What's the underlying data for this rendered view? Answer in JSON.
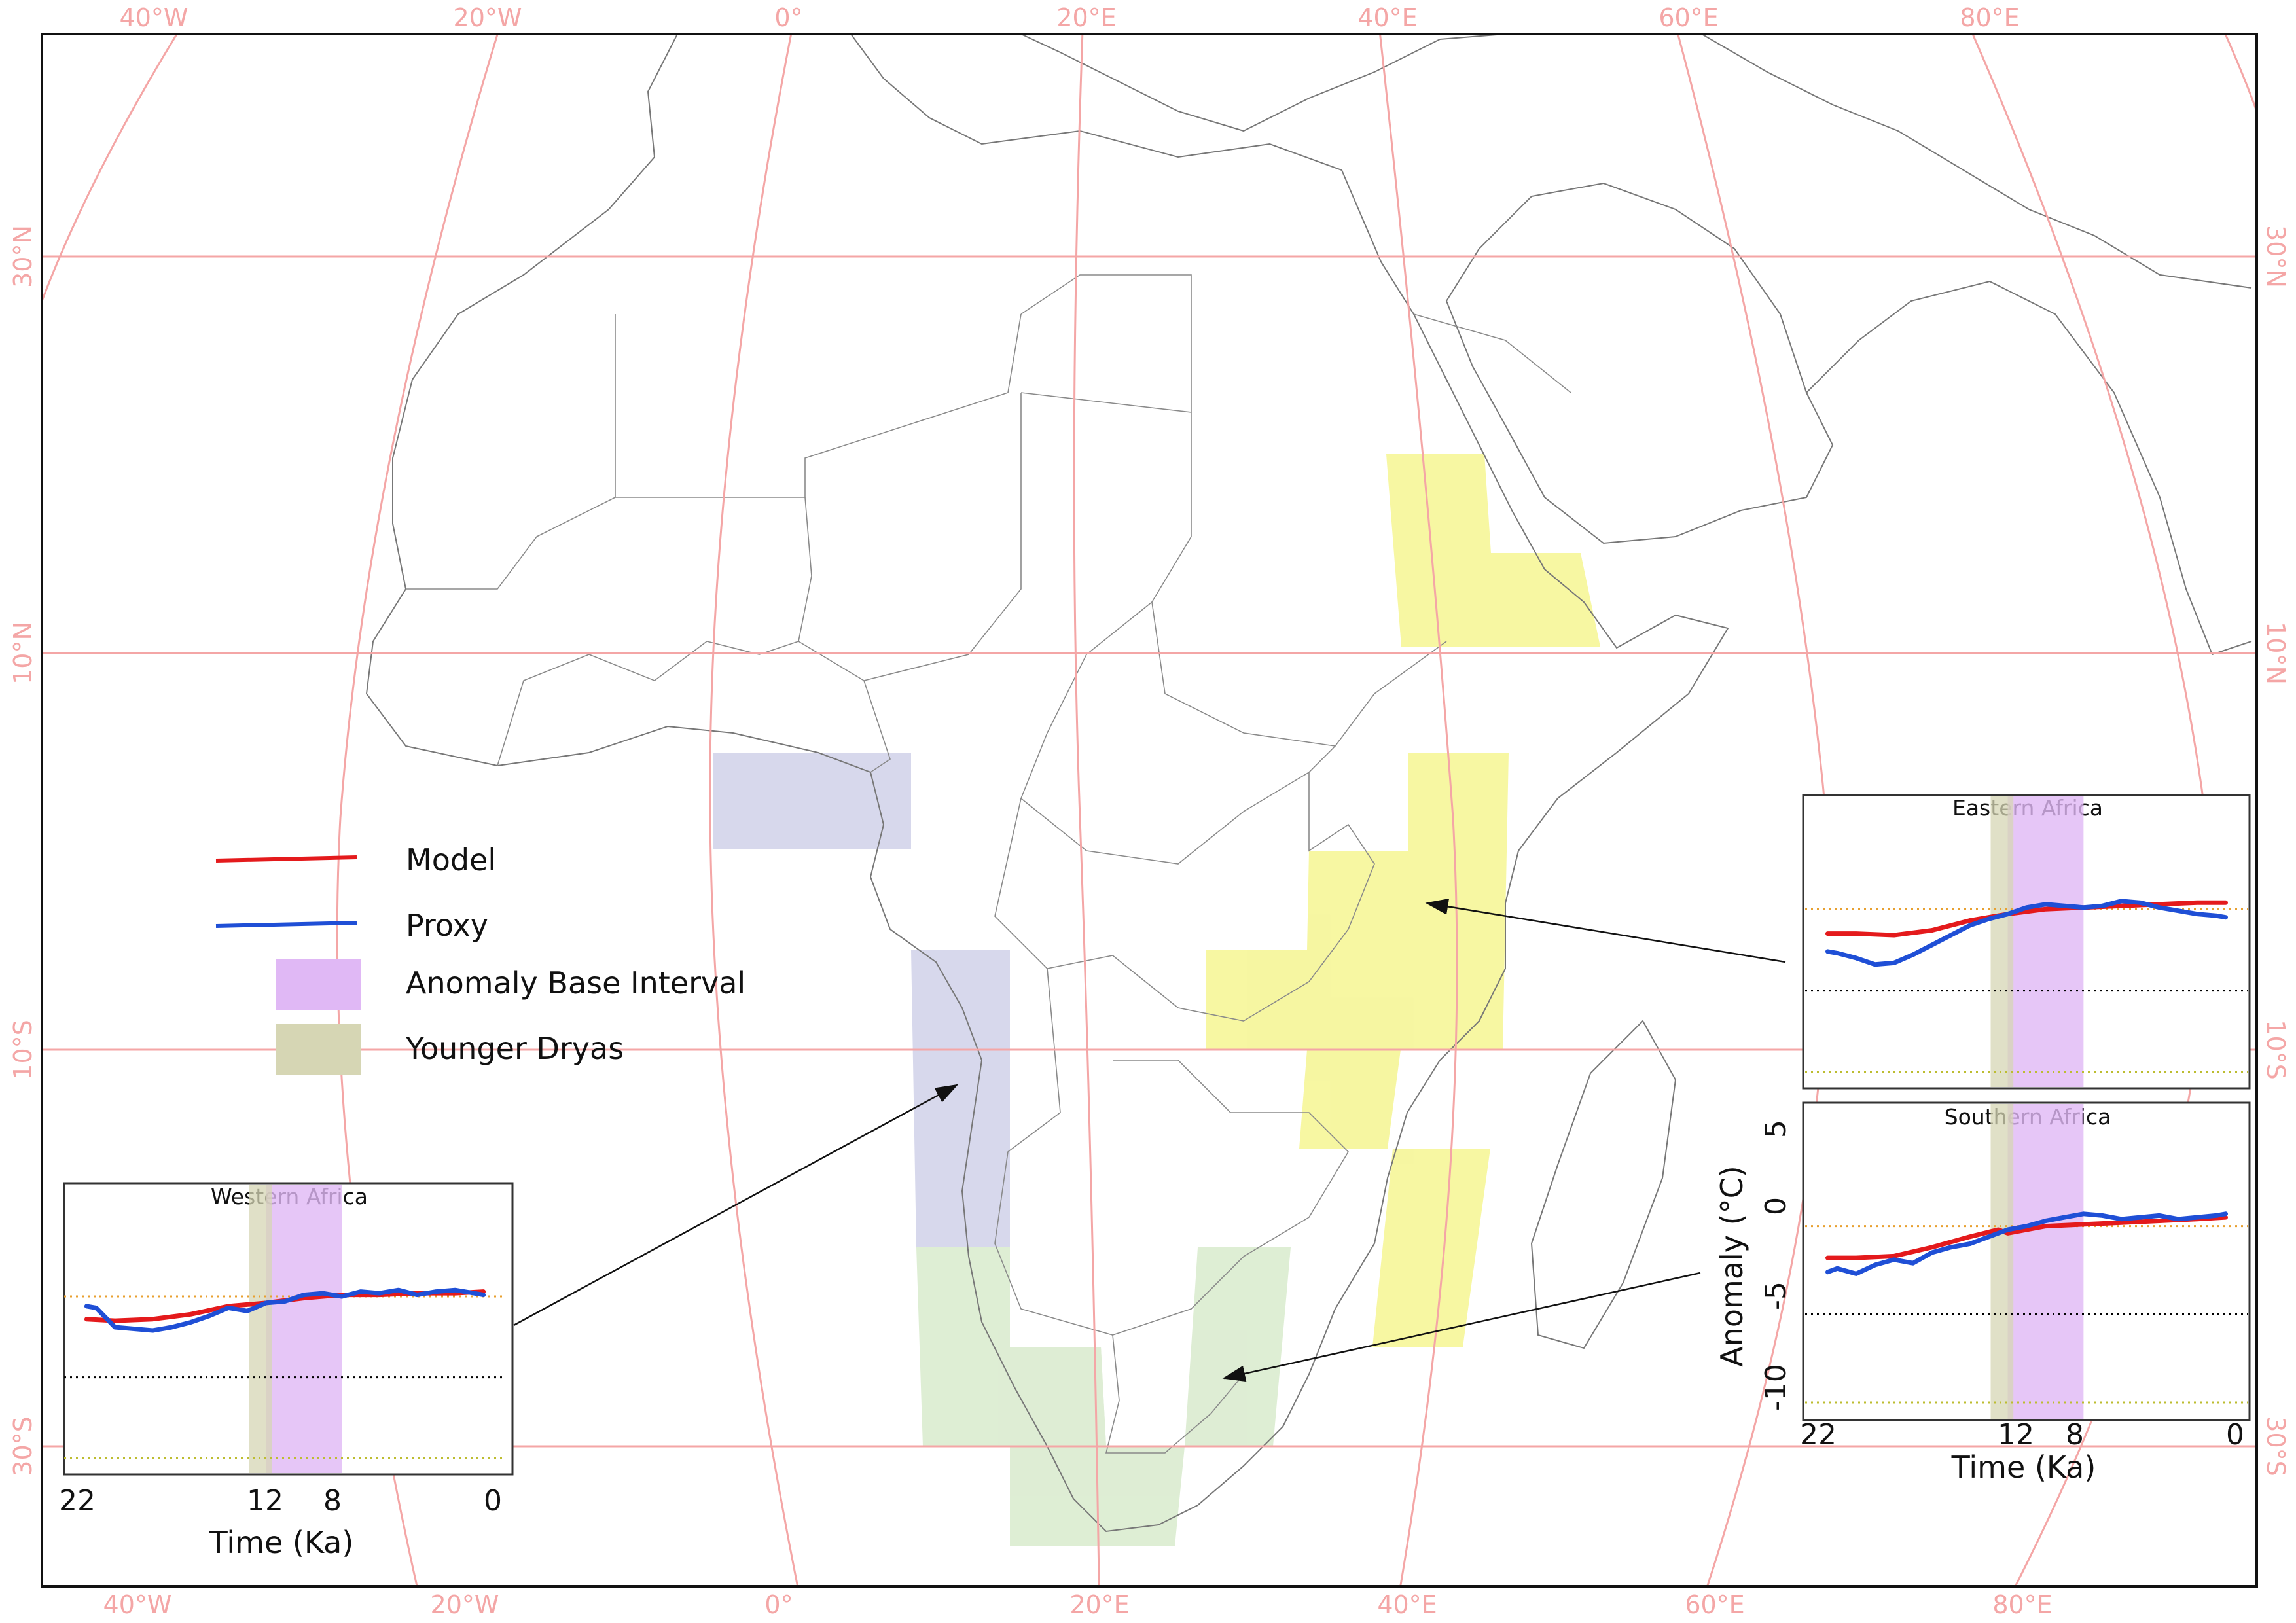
{
  "map": {
    "graticule_color": "#f4a6a6",
    "longitude_labels": [
      "40°W",
      "20°W",
      "0°",
      "20°E",
      "40°E",
      "60°E",
      "80°E"
    ],
    "latitude_labels": [
      "30°N",
      "10°N",
      "10°S",
      "30°S"
    ],
    "regions": [
      {
        "name": "western-africa",
        "color": "#c9cbe6"
      },
      {
        "name": "eastern-africa",
        "color": "#f3f37a"
      },
      {
        "name": "southern-africa",
        "color": "#d3e8c6"
      }
    ]
  },
  "legend": {
    "model": {
      "label": "Model",
      "color": "#e41a1c"
    },
    "proxy": {
      "label": "Proxy",
      "color": "#1f4fd6"
    },
    "base_interval": {
      "label": "Anomaly Base Interval",
      "color": "#e0b8f5"
    },
    "younger_dryas": {
      "label": "Younger Dryas",
      "color": "#d6d6b4"
    }
  },
  "insets": [
    {
      "title": "Western Africa",
      "x_label": "Time (Ka)",
      "x_ticks": [
        "22",
        "12",
        "8",
        "0"
      ]
    },
    {
      "title": "Eastern Africa"
    },
    {
      "title": "Southern Africa",
      "x_label": "Time (Ka)",
      "x_ticks": [
        "22",
        "12",
        "8",
        "0"
      ],
      "y_label": "Anomaly (°C)",
      "y_ticks": [
        "5",
        "0",
        "-5",
        "-10"
      ]
    }
  ],
  "chart_data": [
    {
      "type": "line",
      "title": "Western Africa",
      "xlabel": "Time (Ka)",
      "ylabel": "",
      "xlim": [
        22,
        0
      ],
      "ylim": [
        -11,
        7
      ],
      "base_interval_ka": [
        12,
        8
      ],
      "younger_dryas_ka": [
        12.9,
        11.7
      ],
      "reference_lines": [
        {
          "y": 0,
          "color": "#e8a030"
        },
        {
          "y": -5,
          "color": "#000000"
        },
        {
          "y": -10,
          "color": "#bdbd30"
        }
      ],
      "series": [
        {
          "name": "Model",
          "color": "#e41a1c",
          "x": [
            21.5,
            20,
            18,
            16,
            14,
            12,
            10,
            8,
            6,
            4,
            2,
            0.5
          ],
          "y": [
            -1.4,
            -1.5,
            -1.4,
            -1.1,
            -0.6,
            -0.4,
            -0.1,
            0.1,
            0.1,
            0.2,
            0.2,
            0.3
          ]
        },
        {
          "name": "Proxy",
          "color": "#1f4fd6",
          "x": [
            21.5,
            21,
            20,
            19,
            18,
            17,
            16,
            15,
            14,
            13,
            12,
            11,
            10,
            9,
            8,
            7,
            6,
            5,
            4,
            3,
            2,
            1,
            0.5
          ],
          "y": [
            -0.6,
            -0.7,
            -1.9,
            -2.0,
            -2.1,
            -1.9,
            -1.6,
            -1.2,
            -0.7,
            -0.9,
            -0.4,
            -0.3,
            0.1,
            0.2,
            0.0,
            0.3,
            0.2,
            0.4,
            0.1,
            0.3,
            0.4,
            0.2,
            0.1
          ]
        }
      ]
    },
    {
      "type": "line",
      "title": "Eastern Africa",
      "xlabel": "",
      "ylabel": "",
      "xlim": [
        22,
        0
      ],
      "ylim": [
        -11,
        7
      ],
      "base_interval_ka": [
        12,
        8
      ],
      "younger_dryas_ka": [
        12.9,
        11.7
      ],
      "reference_lines": [
        {
          "y": 0,
          "color": "#e8a030"
        },
        {
          "y": -5,
          "color": "#000000"
        },
        {
          "y": -10,
          "color": "#bdbd30"
        }
      ],
      "series": [
        {
          "name": "Model",
          "color": "#e41a1c",
          "x": [
            21.5,
            20,
            18,
            16,
            14,
            12,
            10,
            8,
            6,
            4,
            2,
            0.5
          ],
          "y": [
            -1.5,
            -1.5,
            -1.6,
            -1.3,
            -0.7,
            -0.3,
            0.0,
            0.1,
            0.2,
            0.3,
            0.4,
            0.4
          ]
        },
        {
          "name": "Proxy",
          "color": "#1f4fd6",
          "x": [
            21.5,
            21,
            20,
            19,
            18,
            17,
            16,
            15,
            14,
            13,
            12,
            11,
            10,
            9,
            8,
            7,
            6,
            5,
            4,
            3,
            2,
            1,
            0.5
          ],
          "y": [
            -2.6,
            -2.7,
            -3.0,
            -3.4,
            -3.3,
            -2.8,
            -2.2,
            -1.6,
            -1.0,
            -0.6,
            -0.3,
            0.1,
            0.3,
            0.2,
            0.1,
            0.2,
            0.5,
            0.4,
            0.1,
            -0.1,
            -0.3,
            -0.4,
            -0.5
          ]
        }
      ]
    },
    {
      "type": "line",
      "title": "Southern Africa",
      "xlabel": "Time (Ka)",
      "ylabel": "Anomaly (°C)",
      "xlim": [
        22,
        0
      ],
      "ylim": [
        -11,
        7
      ],
      "base_interval_ka": [
        12,
        8
      ],
      "younger_dryas_ka": [
        12.9,
        11.7
      ],
      "reference_lines": [
        {
          "y": 0,
          "color": "#e8a030"
        },
        {
          "y": -5,
          "color": "#000000"
        },
        {
          "y": -10,
          "color": "#bdbd30"
        }
      ],
      "series": [
        {
          "name": "Model",
          "color": "#e41a1c",
          "x": [
            21.5,
            20,
            18,
            16,
            14,
            12.5,
            12,
            10,
            8,
            6,
            4,
            2,
            0.5
          ],
          "y": [
            -1.8,
            -1.8,
            -1.7,
            -1.2,
            -0.6,
            -0.2,
            -0.4,
            0.0,
            0.1,
            0.2,
            0.3,
            0.4,
            0.5
          ]
        },
        {
          "name": "Proxy",
          "color": "#1f4fd6",
          "x": [
            21.5,
            21,
            20,
            19,
            18,
            17,
            16,
            15,
            14,
            13,
            12,
            11,
            10,
            9,
            8,
            7,
            6,
            5,
            4,
            3,
            2,
            1,
            0.5
          ],
          "y": [
            -2.6,
            -2.4,
            -2.7,
            -2.2,
            -1.9,
            -2.1,
            -1.5,
            -1.2,
            -1.0,
            -0.6,
            -0.2,
            0.0,
            0.3,
            0.5,
            0.7,
            0.6,
            0.4,
            0.5,
            0.6,
            0.4,
            0.5,
            0.6,
            0.7
          ]
        }
      ]
    }
  ]
}
